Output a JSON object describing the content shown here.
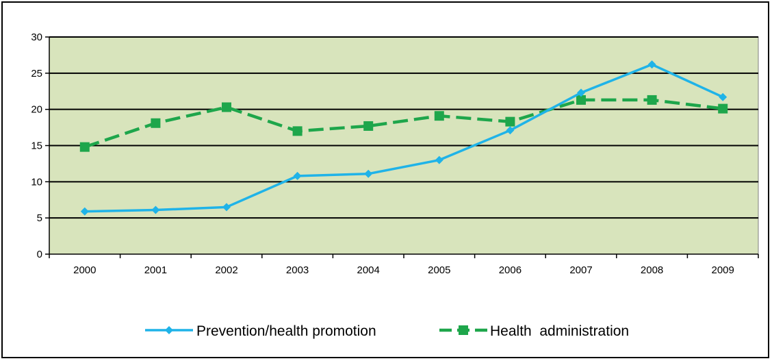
{
  "chart_data": {
    "type": "line",
    "title": "",
    "xlabel": "",
    "ylabel": "",
    "categories": [
      "2000",
      "2001",
      "2002",
      "2003",
      "2004",
      "2005",
      "2006",
      "2007",
      "2008",
      "2009"
    ],
    "ylim": [
      0,
      30
    ],
    "yticks": [
      0,
      5,
      10,
      15,
      20,
      25,
      30
    ],
    "grid": true,
    "legend_position": "bottom",
    "plot_background": "#d8e4bc",
    "series": [
      {
        "name": "Prevention/health promotion",
        "values": [
          5.9,
          6.1,
          6.5,
          10.8,
          11.1,
          13.0,
          17.1,
          22.3,
          26.2,
          21.7
        ],
        "color": "#1fb3e8",
        "line_style": "solid",
        "marker": "diamond"
      },
      {
        "name": "Health  administration",
        "values": [
          14.8,
          18.1,
          20.3,
          17.0,
          17.7,
          19.1,
          18.3,
          21.3,
          21.3,
          20.1
        ],
        "color": "#1ea64b",
        "line_style": "dashed",
        "marker": "square"
      }
    ]
  }
}
